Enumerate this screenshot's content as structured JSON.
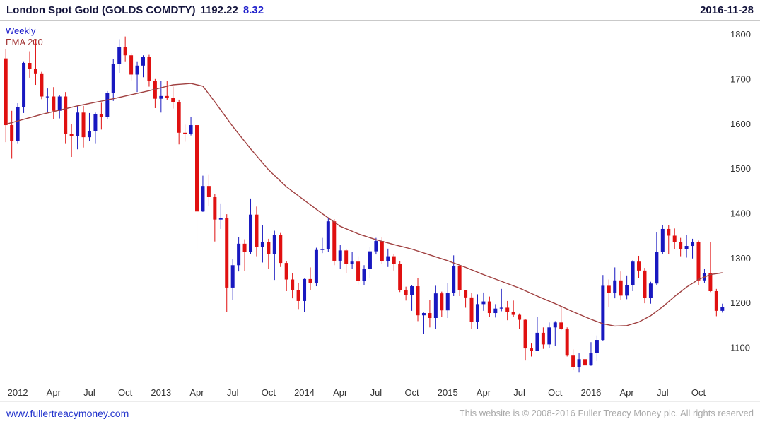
{
  "header": {
    "title": "London Spot Gold (GOLDS COMDTY)",
    "price": "1192.22",
    "change": "8.32",
    "date": "2016-11-28"
  },
  "annotations": {
    "timeframe": "Weekly",
    "ema": "EMA 200"
  },
  "footer": {
    "link": "www.fullertreacymoney.com",
    "copyright": "This website is © 2008-2016 Fuller Treacy Money plc. All rights reserved"
  },
  "chart_data": {
    "type": "candlestick",
    "title": "London Spot Gold (GOLDS COMDTY)",
    "timeframe": "Weekly",
    "overlay": "EMA 200",
    "last_price": 1192.22,
    "change": 8.32,
    "date": "2016-11-28",
    "ylim": [
      1017,
      1827
    ],
    "yticks": [
      1100,
      1200,
      1300,
      1400,
      1500,
      1600,
      1700,
      1800
    ],
    "grid": false,
    "interval_weeks": 2,
    "colors": {
      "up": "#1818c0",
      "down": "#e01010",
      "ema": "#a04040",
      "axis_text": "#333333"
    },
    "xlabels": [
      {
        "label": "2012",
        "idx": 2
      },
      {
        "label": "Apr",
        "idx": 8
      },
      {
        "label": "Jul",
        "idx": 14
      },
      {
        "label": "Oct",
        "idx": 20
      },
      {
        "label": "2013",
        "idx": 26
      },
      {
        "label": "Apr",
        "idx": 32
      },
      {
        "label": "Jul",
        "idx": 38
      },
      {
        "label": "Oct",
        "idx": 44
      },
      {
        "label": "2014",
        "idx": 50
      },
      {
        "label": "Apr",
        "idx": 56
      },
      {
        "label": "Jul",
        "idx": 62
      },
      {
        "label": "Oct",
        "idx": 68
      },
      {
        "label": "2015",
        "idx": 74
      },
      {
        "label": "Apr",
        "idx": 80
      },
      {
        "label": "Jul",
        "idx": 86
      },
      {
        "label": "Oct",
        "idx": 92
      },
      {
        "label": "2016",
        "idx": 98
      },
      {
        "label": "Apr",
        "idx": 104
      },
      {
        "label": "Jul",
        "idx": 110
      },
      {
        "label": "Oct",
        "idx": 116
      }
    ],
    "candles": [
      [
        1747,
        1768,
        1560,
        1598
      ],
      [
        1598,
        1630,
        1523,
        1563
      ],
      [
        1563,
        1647,
        1556,
        1639
      ],
      [
        1639,
        1739,
        1625,
        1737
      ],
      [
        1737,
        1763,
        1704,
        1723
      ],
      [
        1723,
        1790,
        1688,
        1712
      ],
      [
        1712,
        1717,
        1656,
        1662
      ],
      [
        1662,
        1680,
        1627,
        1662
      ],
      [
        1662,
        1683,
        1612,
        1630
      ],
      [
        1630,
        1665,
        1613,
        1662
      ],
      [
        1662,
        1672,
        1556,
        1579
      ],
      [
        1579,
        1601,
        1527,
        1573
      ],
      [
        1573,
        1640,
        1544,
        1626
      ],
      [
        1626,
        1641,
        1548,
        1571
      ],
      [
        1571,
        1625,
        1563,
        1584
      ],
      [
        1584,
        1626,
        1556,
        1623
      ],
      [
        1623,
        1648,
        1588,
        1616
      ],
      [
        1616,
        1674,
        1612,
        1670
      ],
      [
        1670,
        1746,
        1652,
        1735
      ],
      [
        1735,
        1790,
        1714,
        1773
      ],
      [
        1773,
        1796,
        1739,
        1754
      ],
      [
        1754,
        1759,
        1698,
        1711
      ],
      [
        1711,
        1739,
        1672,
        1731
      ],
      [
        1731,
        1754,
        1705,
        1751
      ],
      [
        1751,
        1755,
        1684,
        1697
      ],
      [
        1697,
        1701,
        1636,
        1657
      ],
      [
        1657,
        1696,
        1626,
        1663
      ],
      [
        1663,
        1697,
        1655,
        1659
      ],
      [
        1659,
        1684,
        1635,
        1649
      ],
      [
        1649,
        1655,
        1555,
        1581
      ],
      [
        1581,
        1599,
        1561,
        1579
      ],
      [
        1579,
        1616,
        1575,
        1598
      ],
      [
        1598,
        1605,
        1321,
        1405
      ],
      [
        1405,
        1485,
        1404,
        1462
      ],
      [
        1462,
        1488,
        1418,
        1437
      ],
      [
        1437,
        1444,
        1338,
        1387
      ],
      [
        1387,
        1423,
        1366,
        1390
      ],
      [
        1390,
        1399,
        1180,
        1235
      ],
      [
        1235,
        1298,
        1207,
        1285
      ],
      [
        1285,
        1348,
        1271,
        1333
      ],
      [
        1333,
        1343,
        1272,
        1314
      ],
      [
        1314,
        1434,
        1310,
        1398
      ],
      [
        1398,
        1416,
        1305,
        1326
      ],
      [
        1326,
        1375,
        1291,
        1336
      ],
      [
        1336,
        1344,
        1276,
        1310
      ],
      [
        1310,
        1362,
        1252,
        1352
      ],
      [
        1352,
        1357,
        1281,
        1290
      ],
      [
        1290,
        1294,
        1227,
        1253
      ],
      [
        1253,
        1268,
        1211,
        1229
      ],
      [
        1229,
        1246,
        1187,
        1205
      ],
      [
        1205,
        1255,
        1181,
        1254
      ],
      [
        1254,
        1280,
        1230,
        1245
      ],
      [
        1245,
        1324,
        1238,
        1319
      ],
      [
        1319,
        1346,
        1312,
        1321
      ],
      [
        1321,
        1392,
        1315,
        1383
      ],
      [
        1383,
        1388,
        1285,
        1295
      ],
      [
        1295,
        1331,
        1277,
        1318
      ],
      [
        1318,
        1321,
        1268,
        1287
      ],
      [
        1287,
        1315,
        1277,
        1293
      ],
      [
        1293,
        1305,
        1242,
        1250
      ],
      [
        1250,
        1285,
        1240,
        1276
      ],
      [
        1276,
        1325,
        1257,
        1316
      ],
      [
        1316,
        1346,
        1309,
        1339
      ],
      [
        1339,
        1347,
        1287,
        1294
      ],
      [
        1294,
        1322,
        1281,
        1305
      ],
      [
        1305,
        1310,
        1273,
        1288
      ],
      [
        1288,
        1294,
        1225,
        1230
      ],
      [
        1230,
        1237,
        1206,
        1219
      ],
      [
        1219,
        1240,
        1183,
        1238
      ],
      [
        1238,
        1256,
        1160,
        1173
      ],
      [
        1173,
        1179,
        1131,
        1178
      ],
      [
        1178,
        1208,
        1146,
        1167
      ],
      [
        1167,
        1239,
        1142,
        1222
      ],
      [
        1222,
        1226,
        1170,
        1184
      ],
      [
        1184,
        1245,
        1167,
        1223
      ],
      [
        1223,
        1307,
        1216,
        1283
      ],
      [
        1283,
        1286,
        1216,
        1229
      ],
      [
        1229,
        1230,
        1190,
        1213
      ],
      [
        1213,
        1223,
        1142,
        1158
      ],
      [
        1158,
        1220,
        1142,
        1198
      ],
      [
        1198,
        1224,
        1183,
        1204
      ],
      [
        1204,
        1215,
        1170,
        1178
      ],
      [
        1178,
        1198,
        1168,
        1188
      ],
      [
        1188,
        1232,
        1182,
        1190
      ],
      [
        1190,
        1205,
        1162,
        1181
      ],
      [
        1181,
        1206,
        1170,
        1174
      ],
      [
        1174,
        1177,
        1143,
        1163
      ],
      [
        1163,
        1165,
        1072,
        1099
      ],
      [
        1099,
        1110,
        1081,
        1094
      ],
      [
        1094,
        1170,
        1093,
        1134
      ],
      [
        1134,
        1146,
        1098,
        1108
      ],
      [
        1108,
        1157,
        1100,
        1146
      ],
      [
        1146,
        1160,
        1105,
        1157
      ],
      [
        1157,
        1192,
        1140,
        1142
      ],
      [
        1142,
        1146,
        1081,
        1083
      ],
      [
        1083,
        1097,
        1052,
        1057
      ],
      [
        1057,
        1088,
        1045,
        1075
      ],
      [
        1075,
        1081,
        1047,
        1061
      ],
      [
        1061,
        1113,
        1060,
        1089
      ],
      [
        1089,
        1128,
        1071,
        1118
      ],
      [
        1118,
        1263,
        1115,
        1239
      ],
      [
        1239,
        1253,
        1191,
        1223
      ],
      [
        1223,
        1280,
        1211,
        1251
      ],
      [
        1251,
        1271,
        1208,
        1217
      ],
      [
        1217,
        1262,
        1209,
        1240
      ],
      [
        1240,
        1296,
        1227,
        1293
      ],
      [
        1293,
        1306,
        1257,
        1273
      ],
      [
        1273,
        1279,
        1200,
        1212
      ],
      [
        1212,
        1248,
        1199,
        1244
      ],
      [
        1244,
        1358,
        1240,
        1315
      ],
      [
        1315,
        1375,
        1310,
        1366
      ],
      [
        1366,
        1374,
        1310,
        1351
      ],
      [
        1351,
        1367,
        1321,
        1336
      ],
      [
        1336,
        1346,
        1305,
        1321
      ],
      [
        1321,
        1352,
        1302,
        1328
      ],
      [
        1328,
        1344,
        1300,
        1337
      ],
      [
        1337,
        1340,
        1241,
        1251
      ],
      [
        1251,
        1276,
        1246,
        1267
      ],
      [
        1267,
        1337,
        1225,
        1227
      ],
      [
        1227,
        1232,
        1171,
        1183
      ],
      [
        1183,
        1199,
        1179,
        1192
      ]
    ],
    "ema200": [
      [
        0,
        1600
      ],
      [
        6,
        1622
      ],
      [
        12,
        1641
      ],
      [
        18,
        1657
      ],
      [
        24,
        1675
      ],
      [
        28,
        1688
      ],
      [
        31,
        1691
      ],
      [
        33,
        1685
      ],
      [
        35,
        1650
      ],
      [
        38,
        1595
      ],
      [
        41,
        1545
      ],
      [
        44,
        1498
      ],
      [
        47,
        1460
      ],
      [
        50,
        1430
      ],
      [
        53,
        1400
      ],
      [
        56,
        1372
      ],
      [
        59,
        1355
      ],
      [
        62,
        1342
      ],
      [
        65,
        1331
      ],
      [
        68,
        1321
      ],
      [
        71,
        1308
      ],
      [
        74,
        1295
      ],
      [
        77,
        1280
      ],
      [
        80,
        1264
      ],
      [
        83,
        1249
      ],
      [
        86,
        1234
      ],
      [
        89,
        1216
      ],
      [
        92,
        1199
      ],
      [
        95,
        1181
      ],
      [
        98,
        1164
      ],
      [
        100,
        1154
      ],
      [
        102,
        1149
      ],
      [
        104,
        1150
      ],
      [
        106,
        1158
      ],
      [
        108,
        1172
      ],
      [
        110,
        1192
      ],
      [
        112,
        1215
      ],
      [
        114,
        1236
      ],
      [
        116,
        1253
      ],
      [
        118,
        1264
      ],
      [
        120,
        1268
      ]
    ]
  }
}
